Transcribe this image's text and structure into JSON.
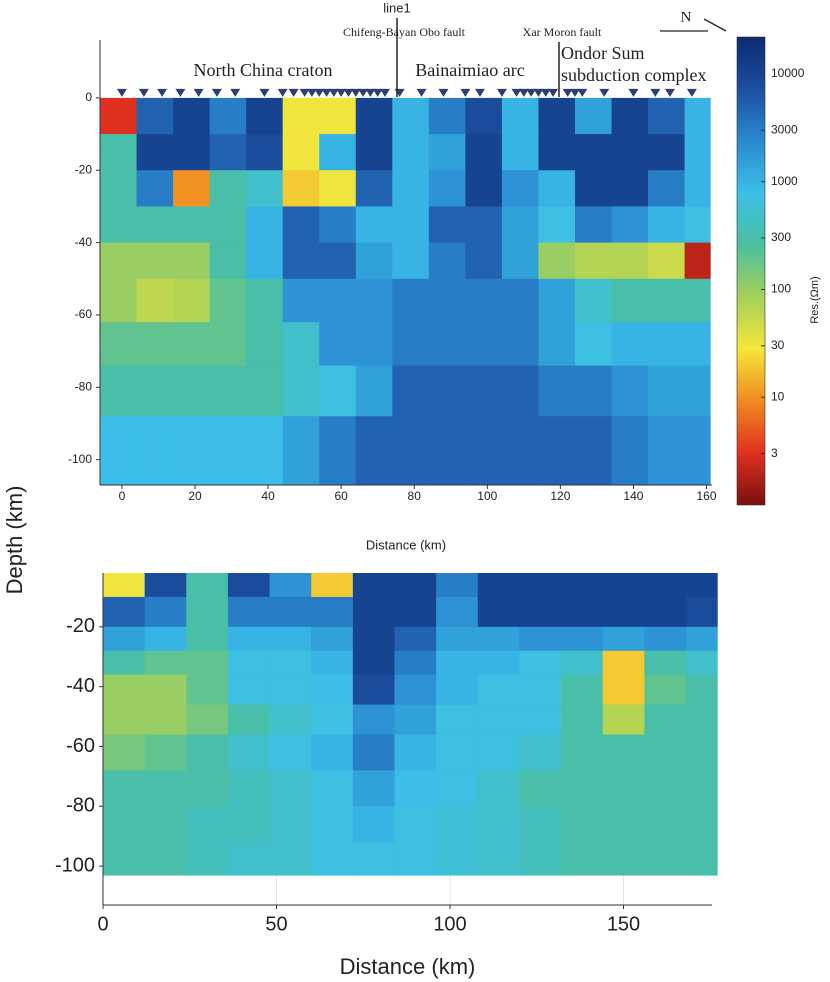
{
  "y_label": "Depth (km)",
  "colormap": [
    "#7a1010",
    "#e03020",
    "#f08a20",
    "#f5e63a",
    "#a6d05a",
    "#4bbfa0",
    "#3bc0e8",
    "#2a8ad0",
    "#1c4fa0",
    "#0c2a6e"
  ],
  "chart_data": [
    {
      "type": "heatmap",
      "title": "line1",
      "x_label": "Distance (km)",
      "annotations": [
        "North China craton",
        "Bainaimiao arc",
        "Ondor Sum",
        "subduction complex",
        "Chifeng-Bayan Obo fault",
        "Xar Moron fault",
        "N"
      ],
      "xlim": [
        -6,
        161.5
      ],
      "ylim": [
        -107,
        16
      ],
      "xticks": [
        0,
        20,
        40,
        60,
        80,
        100,
        120,
        140,
        160
      ],
      "yticks": [
        0,
        -20,
        -40,
        -60,
        -80,
        -100
      ],
      "x_edges": [
        -6,
        4,
        14,
        24,
        34,
        44,
        54,
        64,
        74,
        84,
        94,
        104,
        114,
        124,
        134,
        144,
        154,
        161
      ],
      "y_edges": [
        0,
        -10,
        -20,
        -30,
        -40,
        -50,
        -62,
        -74,
        -88,
        -107
      ],
      "clim": [
        1,
        22000
      ],
      "log_color": true,
      "colorbar": {
        "label": "Res.(Ωm)",
        "ticks": [
          3,
          10,
          30,
          100,
          300,
          1000,
          3000,
          10000
        ]
      },
      "stations": [
        0,
        6,
        11,
        16,
        21,
        26,
        31,
        39,
        44,
        47,
        50,
        52,
        54,
        56,
        58,
        60,
        62,
        64,
        66,
        68,
        70,
        72,
        76,
        82,
        88,
        94,
        98,
        104,
        108,
        110,
        112,
        114,
        116,
        118,
        122,
        124,
        126,
        132,
        140,
        146,
        150,
        156
      ],
      "values": [
        [
          3,
          5000,
          10000,
          3000,
          10000,
          30,
          30,
          10000,
          1000,
          3000,
          8000,
          1000,
          10000,
          1500,
          10000,
          5000,
          1000
        ],
        [
          300,
          10000,
          10000,
          5000,
          8000,
          30,
          1000,
          10000,
          1000,
          1500,
          10000,
          1000,
          10000,
          10000,
          10000,
          10000,
          1000
        ],
        [
          300,
          3000,
          10,
          300,
          500,
          20,
          30,
          5000,
          1000,
          2000,
          10000,
          2000,
          1000,
          10000,
          10000,
          3000,
          1000
        ],
        [
          300,
          300,
          300,
          300,
          1000,
          5000,
          3000,
          1000,
          1000,
          5000,
          5000,
          1500,
          700,
          3000,
          2000,
          1000,
          700
        ],
        [
          100,
          100,
          100,
          300,
          1000,
          5000,
          5000,
          1500,
          1000,
          3000,
          5000,
          1500,
          100,
          70,
          70,
          50,
          2
        ],
        [
          100,
          60,
          70,
          200,
          300,
          2000,
          2000,
          2000,
          3000,
          3000,
          3000,
          3000,
          1500,
          500,
          300,
          300,
          300
        ],
        [
          200,
          200,
          200,
          200,
          300,
          500,
          2000,
          2000,
          3000,
          3000,
          3000,
          3000,
          1500,
          700,
          1000,
          1000,
          1000
        ],
        [
          300,
          300,
          300,
          300,
          300,
          500,
          700,
          1500,
          5000,
          5000,
          5000,
          5000,
          3000,
          3000,
          2000,
          1500,
          1500
        ],
        [
          800,
          800,
          800,
          800,
          800,
          1500,
          3000,
          5000,
          5000,
          5000,
          5000,
          5000,
          5000,
          5000,
          3000,
          2000,
          2000
        ]
      ]
    },
    {
      "type": "heatmap",
      "x_label": "Distance (km)",
      "xlim": [
        0,
        175.5
      ],
      "ylim": [
        -113,
        -2
      ],
      "xticks": [
        0,
        50,
        100,
        150
      ],
      "yticks": [
        -20,
        -40,
        -60,
        -80,
        -100
      ],
      "grid": true,
      "x_edges": [
        0,
        12,
        24,
        36,
        48,
        60,
        72,
        84,
        96,
        108,
        120,
        132,
        144,
        156,
        168,
        177
      ],
      "y_edges": [
        -2,
        -10,
        -20,
        -28,
        -36,
        -46,
        -56,
        -68,
        -80,
        -92,
        -103
      ],
      "clim": [
        1,
        22000
      ],
      "log_color": true,
      "values": [
        [
          30,
          8000,
          300,
          8000,
          2000,
          20,
          10000,
          10000,
          3000,
          10000,
          10000,
          10000,
          10000,
          10000,
          10000
        ],
        [
          5000,
          3000,
          300,
          3000,
          3000,
          3000,
          10000,
          10000,
          2000,
          10000,
          10000,
          10000,
          10000,
          10000,
          8000
        ],
        [
          1500,
          1000,
          300,
          1000,
          1000,
          1500,
          10000,
          5000,
          1500,
          1500,
          2000,
          2000,
          1500,
          2000,
          1500
        ],
        [
          300,
          200,
          200,
          700,
          700,
          1000,
          10000,
          3000,
          1000,
          1000,
          700,
          500,
          20,
          300,
          500
        ],
        [
          100,
          100,
          200,
          700,
          700,
          800,
          8000,
          2000,
          1000,
          700,
          700,
          300,
          20,
          200,
          300
        ],
        [
          100,
          100,
          150,
          300,
          500,
          700,
          2000,
          1500,
          700,
          700,
          700,
          300,
          70,
          300,
          300
        ],
        [
          150,
          200,
          300,
          500,
          700,
          1000,
          3000,
          1000,
          700,
          700,
          500,
          300,
          300,
          300,
          300
        ],
        [
          300,
          300,
          300,
          400,
          500,
          700,
          1500,
          800,
          700,
          500,
          300,
          300,
          300,
          300,
          300
        ],
        [
          300,
          300,
          400,
          400,
          500,
          700,
          1000,
          700,
          600,
          500,
          400,
          300,
          300,
          300,
          300
        ],
        [
          300,
          300,
          400,
          500,
          500,
          700,
          700,
          700,
          600,
          500,
          400,
          300,
          300,
          300,
          300
        ]
      ]
    }
  ]
}
